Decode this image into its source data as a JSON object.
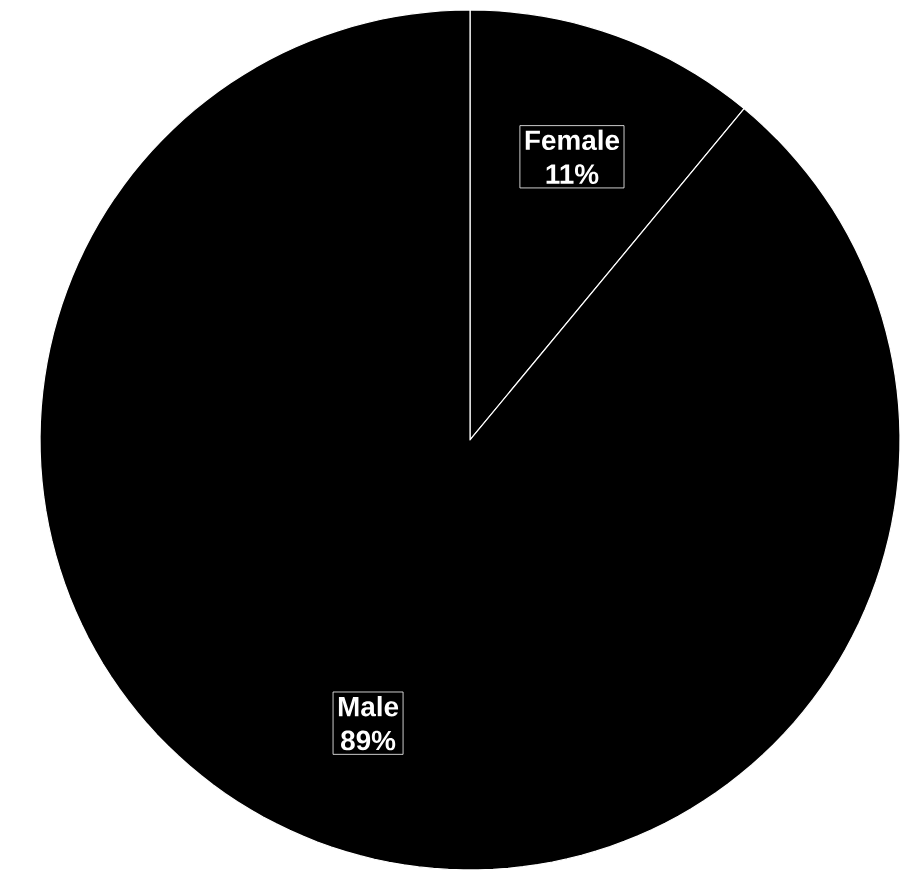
{
  "chart_data": {
    "type": "pie",
    "categories": [
      "Female",
      "Male"
    ],
    "values": [
      11,
      89
    ],
    "value_labels": [
      "11%",
      "89%"
    ],
    "colors": [
      "#000000",
      "#000000"
    ]
  }
}
